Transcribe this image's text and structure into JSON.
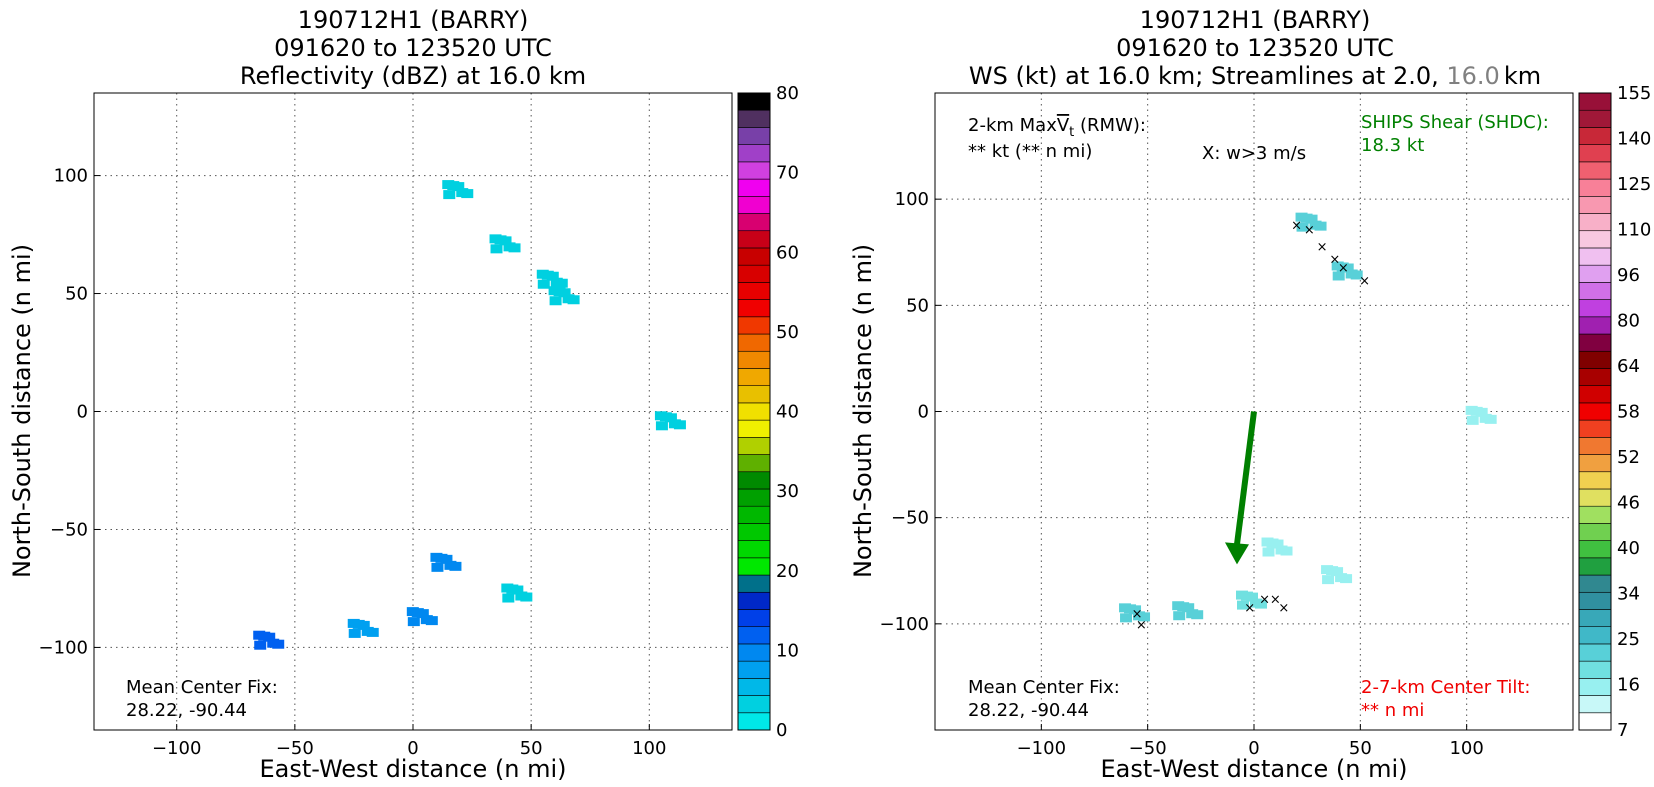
{
  "chart_data": [
    {
      "type": "heatmap",
      "title_lines": [
        "190712H1 (BARRY)",
        "091620 to 123520 UTC",
        "Reflectivity (dBZ) at 16.0 km"
      ],
      "xlabel": "East-West distance (n mi)",
      "ylabel": "North-South distance (n mi)",
      "xlim": [
        -135,
        135
      ],
      "ylim": [
        -135,
        135
      ],
      "xticks": [
        -100,
        -50,
        0,
        50,
        100
      ],
      "yticks": [
        -100,
        -50,
        0,
        50,
        100
      ],
      "grid": true,
      "annotation_lines": [
        "Mean Center Fix:",
        "28.22, -90.44"
      ],
      "colorbar": {
        "label_values": [
          0,
          10,
          20,
          30,
          40,
          50,
          60,
          70,
          80
        ],
        "colors": [
          "#00e8e8",
          "#00d0e0",
          "#00b8e8",
          "#00a0f0",
          "#0088f0",
          "#0060f0",
          "#0040e8",
          "#0028c8",
          "#00708a",
          "#00e800",
          "#00d800",
          "#00c800",
          "#00b800",
          "#00a000",
          "#008a00",
          "#5fb000",
          "#b0d000",
          "#f0f000",
          "#f0e000",
          "#e8c000",
          "#f0a800",
          "#f08800",
          "#f06800",
          "#f03800",
          "#f00000",
          "#e80000",
          "#d80000",
          "#c80000",
          "#c80018",
          "#d80070",
          "#f000d0",
          "#f000f0",
          "#d040e0",
          "#a040c8",
          "#7840a8",
          "#503060",
          "#000000"
        ]
      },
      "echoes": [
        {
          "x": 20,
          "y": 93,
          "dbz": 2
        },
        {
          "x": 40,
          "y": 70,
          "dbz": 2
        },
        {
          "x": 60,
          "y": 55,
          "dbz": 2
        },
        {
          "x": 65,
          "y": 48,
          "dbz": 2
        },
        {
          "x": 110,
          "y": -5,
          "dbz": 2
        },
        {
          "x": 15,
          "y": -65,
          "dbz": 8
        },
        {
          "x": 45,
          "y": -78,
          "dbz": 2
        },
        {
          "x": -20,
          "y": -93,
          "dbz": 6
        },
        {
          "x": -60,
          "y": -98,
          "dbz": 11
        },
        {
          "x": 5,
          "y": -88,
          "dbz": 9
        }
      ]
    },
    {
      "type": "heatmap",
      "title_lines": [
        "190712H1 (BARRY)",
        "091620 to 123520 UTC"
      ],
      "title_line3_parts": [
        "WS (kt) at 16.0 km; Streamlines at 2.0, ",
        "16.0",
        "km"
      ],
      "xlabel": "East-West distance (n mi)",
      "ylabel": "North-South distance (n mi)",
      "xlim": [
        -150,
        150
      ],
      "ylim": [
        -150,
        150
      ],
      "xticks": [
        -100,
        -50,
        0,
        50,
        100
      ],
      "yticks": [
        -100,
        -50,
        0,
        50,
        100
      ],
      "grid": true,
      "annotations": {
        "maxvt_line1_prefix": "2-km Max",
        "maxvt_symbol": "V",
        "maxvt_subscript": "t",
        "maxvt_suffix": " (RMW):",
        "maxvt_line2": "** kt (** n mi)",
        "w_marker": "X: w>3 m/s",
        "ships_line1": "SHIPS Shear (SHDC):",
        "ships_line2": "18.3 kt",
        "center_fix_lines": [
          "Mean Center Fix:",
          "28.22, -90.44"
        ],
        "tilt_lines": [
          "2-7-km Center Tilt:",
          "** n mi"
        ]
      },
      "shear_vector": {
        "from": [
          0,
          0
        ],
        "to": [
          -8,
          -72
        ],
        "color": "#008000",
        "magnitude_kt": 18.3
      },
      "colorbar": {
        "label_values": [
          7,
          16,
          25,
          34,
          40,
          46,
          52,
          58,
          64,
          80,
          96,
          110,
          125,
          140,
          155
        ],
        "colors": [
          "#ffffff",
          "#c8f8f8",
          "#98f0f0",
          "#70e0e0",
          "#58d0d8",
          "#40b8c8",
          "#38a8b8",
          "#3090a0",
          "#308890",
          "#20a040",
          "#40c040",
          "#70d050",
          "#a0e060",
          "#e0e060",
          "#f0d050",
          "#f0a040",
          "#f07830",
          "#f04020",
          "#f00000",
          "#d00000",
          "#a80000",
          "#800000",
          "#800040",
          "#a020b0",
          "#c040e0",
          "#d070e8",
          "#e0a0f0",
          "#f0c0f0",
          "#f8c8e0",
          "#f8b0c8",
          "#f898b0",
          "#f88098",
          "#f06070",
          "#e04050",
          "#c82838",
          "#a01838",
          "#981038"
        ]
      },
      "echoes": [
        {
          "x": 28,
          "y": 88,
          "ws": 25
        },
        {
          "x": 45,
          "y": 65,
          "ws": 25
        },
        {
          "x": 108,
          "y": -3,
          "ws": 16
        },
        {
          "x": -30,
          "y": -95,
          "ws": 25
        },
        {
          "x": 0,
          "y": -90,
          "ws": 20
        },
        {
          "x": 12,
          "y": -65,
          "ws": 16
        },
        {
          "x": 40,
          "y": -78,
          "ws": 16
        },
        {
          "x": -55,
          "y": -96,
          "ws": 25
        }
      ],
      "w_markers": [
        {
          "x": 20,
          "y": 88
        },
        {
          "x": 26,
          "y": 86
        },
        {
          "x": 32,
          "y": 78
        },
        {
          "x": 38,
          "y": 72
        },
        {
          "x": 42,
          "y": 68
        },
        {
          "x": 52,
          "y": 62
        },
        {
          "x": -55,
          "y": -95
        },
        {
          "x": -53,
          "y": -100
        },
        {
          "x": 5,
          "y": -88
        },
        {
          "x": 10,
          "y": -88
        },
        {
          "x": 14,
          "y": -92
        },
        {
          "x": -2,
          "y": -92
        }
      ]
    }
  ]
}
